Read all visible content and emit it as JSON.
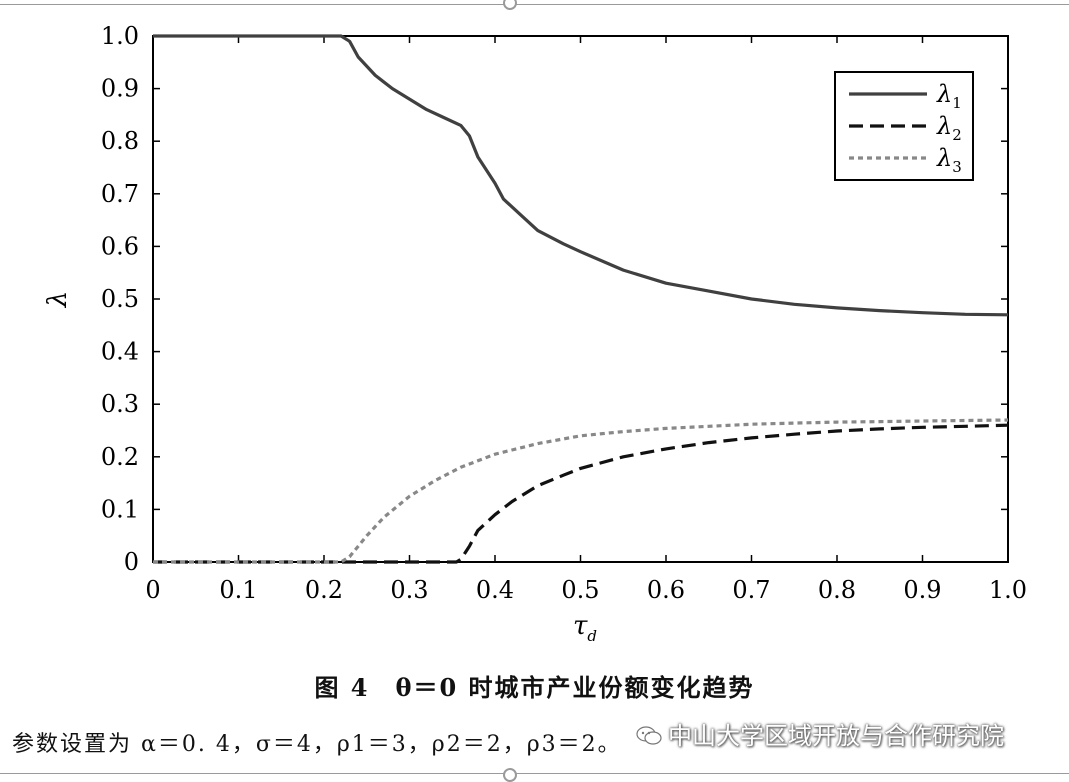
{
  "chart_data": {
    "type": "line",
    "xlabel": "τ",
    "xlabel_sub": "d",
    "ylabel": "λ",
    "xlim": [
      0,
      1.0
    ],
    "ylim": [
      0,
      1.0
    ],
    "x_ticks": [
      "0",
      "0.1",
      "0.2",
      "0.3",
      "0.4",
      "0.5",
      "0.6",
      "0.7",
      "0.8",
      "0.9",
      "1.0"
    ],
    "y_ticks": [
      "0",
      "0.1",
      "0.2",
      "0.3",
      "0.4",
      "0.5",
      "0.6",
      "0.7",
      "0.8",
      "0.9",
      "1.0"
    ],
    "grid": false,
    "legend_position": "top-right",
    "series": [
      {
        "name": "λ",
        "name_sub": "1",
        "style": "solid",
        "color": "#404040",
        "points": [
          [
            0,
            1.0
          ],
          [
            0.1,
            1.0
          ],
          [
            0.2,
            1.0
          ],
          [
            0.22,
            1.0
          ],
          [
            0.23,
            0.99
          ],
          [
            0.24,
            0.96
          ],
          [
            0.26,
            0.925
          ],
          [
            0.28,
            0.9
          ],
          [
            0.3,
            0.88
          ],
          [
            0.32,
            0.86
          ],
          [
            0.34,
            0.845
          ],
          [
            0.36,
            0.83
          ],
          [
            0.37,
            0.81
          ],
          [
            0.38,
            0.77
          ],
          [
            0.4,
            0.72
          ],
          [
            0.41,
            0.69
          ],
          [
            0.43,
            0.66
          ],
          [
            0.45,
            0.63
          ],
          [
            0.48,
            0.605
          ],
          [
            0.5,
            0.59
          ],
          [
            0.55,
            0.555
          ],
          [
            0.6,
            0.53
          ],
          [
            0.65,
            0.515
          ],
          [
            0.7,
            0.5
          ],
          [
            0.75,
            0.49
          ],
          [
            0.8,
            0.483
          ],
          [
            0.85,
            0.478
          ],
          [
            0.9,
            0.474
          ],
          [
            0.95,
            0.471
          ],
          [
            1.0,
            0.47
          ]
        ]
      },
      {
        "name": "λ",
        "name_sub": "2",
        "style": "dashed",
        "color": "#111111",
        "points": [
          [
            0,
            0.0
          ],
          [
            0.1,
            0.0
          ],
          [
            0.2,
            0.0
          ],
          [
            0.3,
            0.0
          ],
          [
            0.355,
            0.0
          ],
          [
            0.36,
            0.005
          ],
          [
            0.37,
            0.03
          ],
          [
            0.38,
            0.06
          ],
          [
            0.4,
            0.09
          ],
          [
            0.42,
            0.115
          ],
          [
            0.45,
            0.145
          ],
          [
            0.48,
            0.165
          ],
          [
            0.5,
            0.178
          ],
          [
            0.55,
            0.2
          ],
          [
            0.6,
            0.215
          ],
          [
            0.65,
            0.227
          ],
          [
            0.7,
            0.236
          ],
          [
            0.75,
            0.243
          ],
          [
            0.8,
            0.249
          ],
          [
            0.85,
            0.253
          ],
          [
            0.9,
            0.256
          ],
          [
            0.95,
            0.258
          ],
          [
            1.0,
            0.26
          ]
        ]
      },
      {
        "name": "λ",
        "name_sub": "3",
        "style": "dotted",
        "color": "#888888",
        "points": [
          [
            0,
            0.0
          ],
          [
            0.1,
            0.0
          ],
          [
            0.2,
            0.0
          ],
          [
            0.22,
            0.0
          ],
          [
            0.23,
            0.01
          ],
          [
            0.25,
            0.05
          ],
          [
            0.27,
            0.085
          ],
          [
            0.3,
            0.125
          ],
          [
            0.33,
            0.155
          ],
          [
            0.36,
            0.18
          ],
          [
            0.4,
            0.205
          ],
          [
            0.45,
            0.225
          ],
          [
            0.5,
            0.24
          ],
          [
            0.55,
            0.248
          ],
          [
            0.6,
            0.254
          ],
          [
            0.65,
            0.258
          ],
          [
            0.7,
            0.262
          ],
          [
            0.75,
            0.264
          ],
          [
            0.8,
            0.266
          ],
          [
            0.85,
            0.267
          ],
          [
            0.9,
            0.268
          ],
          [
            0.95,
            0.269
          ],
          [
            1.0,
            0.27
          ]
        ]
      }
    ]
  },
  "caption": "图 4　θ＝0 时城市产业份额变化趋势",
  "params_note": "参数设置为 α＝0. 4，σ＝4，ρ1＝3，ρ2＝2，ρ3＝2。",
  "watermark": "中山大学区域开放与合作研究院",
  "watermark_icon": "wechat-icon"
}
